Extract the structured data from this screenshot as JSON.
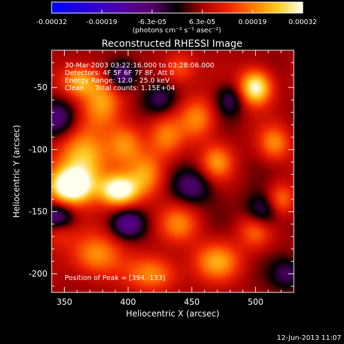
{
  "chart_data": {
    "type": "heatmap",
    "title": "Reconstructed RHESSI Image",
    "xlabel": "Heliocentric X (arcsec)",
    "ylabel": "Heliocentric Y (arcsec)",
    "xlim": [
      340,
      530
    ],
    "ylim": [
      -215,
      -20
    ],
    "x_ticks": [
      350,
      400,
      450,
      500
    ],
    "y_ticks": [
      -50,
      -100,
      -150,
      -200
    ],
    "colorbar": {
      "range": [
        -0.00032,
        0.00032
      ],
      "tick_labels": [
        "-0.00032",
        "-0.00019",
        "-6.3e-05",
        "6.3e-05",
        "0.00019",
        "0.00032"
      ],
      "unit_text": "(photons cm⁻² s⁻¹ asec⁻²)"
    },
    "annotations": [
      "30-Mar-2003 03:22:16.000 to 03:28:06.000",
      "Detectors: 4F 5F 6F 7F 8F, Att 0",
      "Energy Range: 12.0 - 25.0 keV",
      "Clean     Total counts: 1.15E+04"
    ],
    "peak_label": "Position of Peak = [394,-133]",
    "peak": {
      "x": 394,
      "y": -133
    },
    "blobs": [
      {
        "x": 355,
        "y": -130,
        "sx": 12,
        "sy": 10,
        "a": 1.0
      },
      {
        "x": 393,
        "y": -133,
        "sx": 11,
        "sy": 9,
        "a": 0.9
      },
      {
        "x": 365,
        "y": -108,
        "sx": 14,
        "sy": 16,
        "a": 0.65
      },
      {
        "x": 362,
        "y": -45,
        "sx": 10,
        "sy": 9,
        "a": 0.55
      },
      {
        "x": 380,
        "y": -62,
        "sx": 11,
        "sy": 14,
        "a": 0.5
      },
      {
        "x": 398,
        "y": -95,
        "sx": 10,
        "sy": 12,
        "a": 0.45
      },
      {
        "x": 415,
        "y": -120,
        "sx": 10,
        "sy": 12,
        "a": 0.45
      },
      {
        "x": 430,
        "y": -90,
        "sx": 10,
        "sy": 12,
        "a": 0.4
      },
      {
        "x": 455,
        "y": -75,
        "sx": 10,
        "sy": 12,
        "a": 0.45
      },
      {
        "x": 470,
        "y": -110,
        "sx": 9,
        "sy": 10,
        "a": 0.45
      },
      {
        "x": 500,
        "y": -50,
        "sx": 9,
        "sy": 10,
        "a": 0.85
      },
      {
        "x": 515,
        "y": -95,
        "sx": 9,
        "sy": 10,
        "a": 0.45
      },
      {
        "x": 520,
        "y": -140,
        "sx": 8,
        "sy": 9,
        "a": 0.4
      },
      {
        "x": 375,
        "y": -185,
        "sx": 14,
        "sy": 12,
        "a": 0.5
      },
      {
        "x": 420,
        "y": -200,
        "sx": 14,
        "sy": 10,
        "a": 0.45
      },
      {
        "x": 440,
        "y": -160,
        "sx": 11,
        "sy": 11,
        "a": 0.4
      },
      {
        "x": 470,
        "y": -190,
        "sx": 13,
        "sy": 11,
        "a": 0.5
      },
      {
        "x": 500,
        "y": -165,
        "sx": 9,
        "sy": 10,
        "a": 0.4
      },
      {
        "x": 440,
        "y": -35,
        "sx": 9,
        "sy": 9,
        "a": 0.35
      },
      {
        "x": 345,
        "y": -165,
        "sx": 9,
        "sy": 9,
        "a": 0.3
      },
      {
        "x": 395,
        "y": -40,
        "sx": 8,
        "sy": 8,
        "a": -0.55
      },
      {
        "x": 345,
        "y": -75,
        "sx": 10,
        "sy": 10,
        "a": -0.45
      },
      {
        "x": 400,
        "y": -160,
        "sx": 9,
        "sy": 8,
        "a": -0.5
      },
      {
        "x": 345,
        "y": -155,
        "sx": 9,
        "sy": 8,
        "a": -0.55
      },
      {
        "x": 450,
        "y": -130,
        "sx": 11,
        "sy": 10,
        "a": -0.4
      },
      {
        "x": 505,
        "y": -150,
        "sx": 9,
        "sy": 10,
        "a": -0.45
      },
      {
        "x": 480,
        "y": -60,
        "sx": 8,
        "sy": 9,
        "a": -0.35
      },
      {
        "x": 425,
        "y": -60,
        "sx": 9,
        "sy": 9,
        "a": -0.35
      },
      {
        "x": 525,
        "y": -200,
        "sx": 9,
        "sy": 9,
        "a": -0.35
      }
    ]
  },
  "footer": {
    "date": "12-Jun-2013 11:07"
  }
}
